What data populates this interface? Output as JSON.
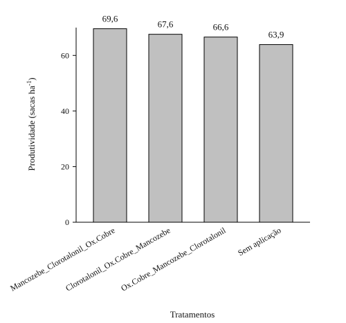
{
  "chart_data": {
    "type": "bar",
    "categories": [
      "Mancozebe_Clorotalonil_Ox.Cobre",
      "Clorotalonil_Ox.Cobre_Mancozebe",
      "Ox.Cobre_Mancozebe_Clorotalonil",
      "Sem aplicação"
    ],
    "values": [
      69.6,
      67.6,
      66.6,
      63.9
    ],
    "data_labels": [
      "69,6",
      "67,6",
      "66,6",
      "63,9"
    ],
    "ylabel_main": "Produtividade (sacas ha",
    "ylabel_sup": "-1",
    "ylabel_close": ")",
    "xlabel": "Tratamentos",
    "ylim": [
      0,
      70
    ],
    "yticks": [
      0,
      20,
      40,
      60
    ],
    "grid": false,
    "colors": {
      "bar_fill": "#c0c0c0",
      "bar_stroke": "#000000",
      "axis": "#000000"
    }
  }
}
